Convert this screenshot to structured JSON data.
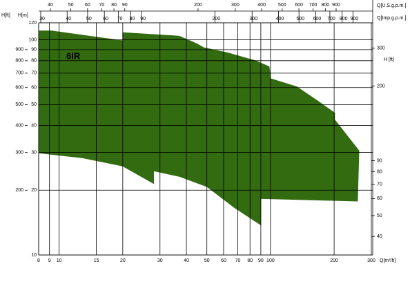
{
  "chart_data": {
    "type": "area",
    "annotation": "6IR",
    "xlabel": "Q[m³/h]",
    "ylabel": "H[m]",
    "y2label": "H [ft]",
    "y3label": "H[ft]",
    "x2label": "Q[U.S.g.p.m.]",
    "x3label": "Q[Imp.g.p.m.]",
    "xscale": "log",
    "yscale": "log",
    "grid": true,
    "color": "#336b10",
    "xlim": [
      8,
      300
    ],
    "xticks": [
      8,
      9,
      10,
      15,
      20,
      30,
      40,
      50,
      60,
      70,
      80,
      90,
      100,
      200,
      300
    ],
    "ylim": [
      10,
      120
    ],
    "yticks": [
      10,
      20,
      30,
      40,
      50,
      60,
      70,
      80,
      90,
      100,
      120
    ],
    "y2lim": [
      32.81,
      393.7
    ],
    "y2ticks": [
      40,
      50,
      60,
      70,
      80,
      90,
      200,
      300
    ],
    "y3lim": [
      100,
      1200
    ],
    "y3ticks": [
      200,
      300,
      400,
      500,
      600,
      700,
      800,
      900
    ],
    "x2lim": [
      35.22,
      1320.9
    ],
    "x2ticks": [
      40,
      50,
      60,
      70,
      80,
      90,
      200,
      300,
      400,
      500,
      600,
      700,
      800,
      900
    ],
    "x3lim": [
      29.33,
      1099.8
    ],
    "x3ticks": [
      30,
      40,
      50,
      60,
      70,
      80,
      90,
      200,
      300,
      400,
      500,
      600,
      700,
      800,
      900
    ],
    "area": {
      "x": [
        8,
        9.2,
        20,
        20,
        37,
        44.7,
        48.2,
        62.7,
        84.7,
        98.5,
        100,
        133,
        167,
        201,
        201,
        262,
        258,
        90,
        90,
        67.6,
        50,
        37,
        28,
        28,
        20,
        12.9,
        8
      ],
      "y": [
        110,
        110,
        99,
        108,
        104,
        96,
        92,
        87,
        80,
        75,
        66,
        60.5,
        52,
        45.7,
        42.5,
        30.5,
        17.8,
        18.3,
        13.8,
        16.6,
        20.8,
        23.2,
        24.6,
        21.5,
        25.9,
        28.3,
        29.8
      ]
    }
  }
}
